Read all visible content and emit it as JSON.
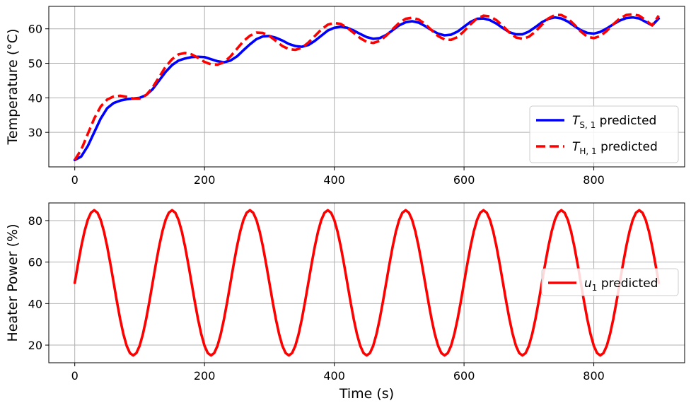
{
  "chart_data": [
    {
      "type": "line",
      "xlabel": "",
      "ylabel": "Temperature (°C)",
      "xlim": [
        -40,
        940
      ],
      "ylim": [
        20,
        66.5
      ],
      "xticks": [
        0,
        200,
        400,
        600,
        800
      ],
      "yticks": [
        30,
        40,
        50,
        60
      ],
      "grid": true,
      "legend_position": "lower-right",
      "series": [
        {
          "name": "T_{S,1} predicted",
          "legend_main": "T",
          "legend_sub": "S, 1",
          "legend_suffix": " predicted",
          "color": "#0000ff",
          "style": "solid",
          "x": [
            0,
            10,
            20,
            30,
            40,
            50,
            60,
            70,
            80,
            90,
            100,
            110,
            120,
            130,
            140,
            150,
            160,
            170,
            180,
            190,
            200,
            210,
            220,
            230,
            240,
            250,
            260,
            270,
            280,
            290,
            300,
            310,
            320,
            330,
            340,
            350,
            360,
            370,
            380,
            390,
            400,
            410,
            420,
            430,
            440,
            450,
            460,
            470,
            480,
            490,
            500,
            510,
            520,
            530,
            540,
            550,
            560,
            570,
            580,
            590,
            600,
            610,
            620,
            630,
            640,
            650,
            660,
            670,
            680,
            690,
            700,
            710,
            720,
            730,
            740,
            750,
            760,
            770,
            780,
            790,
            800,
            810,
            820,
            830,
            840,
            850,
            860,
            870,
            880,
            890,
            900
          ],
          "y": [
            22.0,
            23.0,
            26.0,
            30.0,
            34.0,
            37.0,
            38.5,
            39.2,
            39.6,
            39.8,
            40.0,
            40.8,
            42.5,
            45.0,
            47.5,
            49.5,
            50.8,
            51.4,
            51.8,
            51.9,
            51.8,
            51.2,
            50.6,
            50.3,
            50.8,
            52.0,
            53.8,
            55.5,
            57.0,
            57.8,
            57.9,
            57.4,
            56.6,
            55.6,
            55.0,
            54.8,
            55.3,
            56.5,
            58.0,
            59.5,
            60.3,
            60.6,
            60.3,
            59.5,
            58.5,
            57.6,
            57.1,
            57.3,
            58.2,
            59.6,
            61.0,
            61.9,
            62.2,
            61.8,
            60.8,
            59.6,
            58.6,
            58.1,
            58.3,
            59.2,
            60.6,
            62.0,
            62.9,
            63.0,
            62.5,
            61.5,
            60.2,
            59.0,
            58.4,
            58.4,
            59.2,
            60.5,
            61.9,
            62.9,
            63.3,
            63.0,
            62.1,
            60.8,
            59.6,
            58.8,
            58.6,
            59.1,
            60.1,
            61.3,
            62.4,
            63.1,
            63.3,
            63.0,
            62.0,
            61.0,
            63.0
          ]
        },
        {
          "name": "T_{H,1} predicted",
          "legend_main": "T",
          "legend_sub": "H, 1",
          "legend_suffix": " predicted",
          "color": "#ff0000",
          "style": "dashed",
          "x": [
            0,
            10,
            20,
            30,
            40,
            50,
            60,
            70,
            80,
            90,
            100,
            110,
            120,
            130,
            140,
            150,
            160,
            170,
            180,
            190,
            200,
            210,
            220,
            230,
            240,
            250,
            260,
            270,
            280,
            290,
            300,
            310,
            320,
            330,
            340,
            350,
            360,
            370,
            380,
            390,
            400,
            410,
            420,
            430,
            440,
            450,
            460,
            470,
            480,
            490,
            500,
            510,
            520,
            530,
            540,
            550,
            560,
            570,
            580,
            590,
            600,
            610,
            620,
            630,
            640,
            650,
            660,
            670,
            680,
            690,
            700,
            710,
            720,
            730,
            740,
            750,
            760,
            770,
            780,
            790,
            800,
            810,
            820,
            830,
            840,
            850,
            860,
            870,
            880,
            890,
            900
          ],
          "y": [
            22.0,
            25.0,
            29.5,
            34.0,
            37.5,
            39.5,
            40.4,
            40.6,
            40.3,
            39.8,
            39.8,
            40.8,
            43.0,
            46.0,
            49.0,
            51.2,
            52.6,
            53.0,
            52.6,
            51.6,
            50.4,
            49.7,
            49.6,
            50.3,
            52.0,
            54.2,
            56.4,
            58.0,
            58.9,
            58.8,
            57.9,
            56.5,
            55.0,
            54.1,
            53.9,
            54.5,
            56.0,
            57.9,
            59.8,
            61.2,
            61.7,
            61.4,
            60.3,
            58.8,
            57.3,
            56.2,
            55.9,
            56.5,
            58.0,
            59.9,
            61.7,
            62.9,
            63.2,
            62.7,
            61.4,
            59.6,
            57.9,
            56.9,
            56.8,
            57.6,
            59.3,
            61.3,
            63.0,
            63.8,
            63.6,
            62.5,
            60.8,
            58.9,
            57.5,
            57.1,
            57.7,
            59.2,
            61.2,
            63.0,
            64.0,
            64.0,
            63.0,
            61.2,
            59.2,
            57.7,
            57.3,
            57.9,
            59.4,
            61.3,
            63.0,
            64.0,
            64.2,
            63.8,
            62.5,
            61.0,
            63.8
          ]
        }
      ]
    },
    {
      "type": "line",
      "xlabel": "Time (s)",
      "ylabel": "Heater Power (%)",
      "xlim": [
        -40,
        940
      ],
      "ylim": [
        11.5,
        88.5
      ],
      "xticks": [
        0,
        200,
        400,
        600,
        800
      ],
      "yticks": [
        20,
        40,
        60,
        80
      ],
      "grid": true,
      "legend_position": "center-right",
      "series": [
        {
          "name": "u_1 predicted",
          "legend_main": "u",
          "legend_sub": "1",
          "legend_suffix": " predicted",
          "color": "#ff0000",
          "style": "solid",
          "baseline": 50,
          "amplitude": 35,
          "period": 120,
          "x_start": 0,
          "x_end": 900,
          "x_step": 5
        }
      ]
    }
  ]
}
